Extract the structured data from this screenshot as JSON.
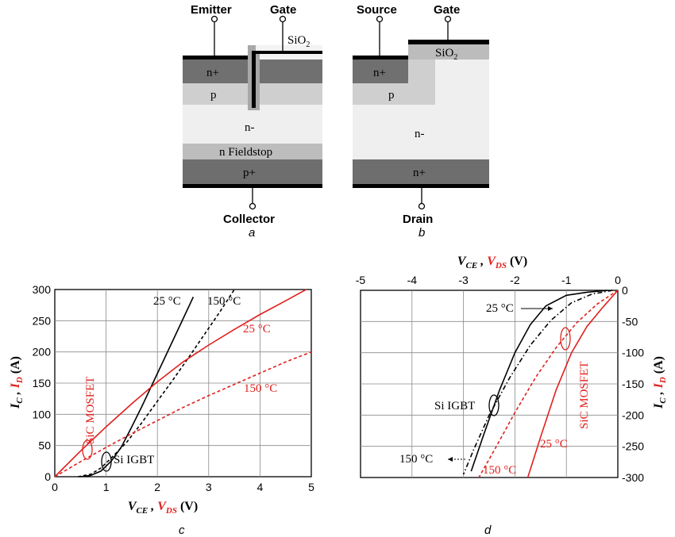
{
  "panel_a": {
    "emitter": "Emitter",
    "gate": "Gate",
    "sio2_main": "SiO",
    "sio2_sub": "2",
    "n_plus": "n+",
    "p": "p",
    "n_minus": "n-",
    "fieldstop": "n Fieldstop",
    "p_plus": "p+",
    "collector": "Collector",
    "caption": "a"
  },
  "panel_b": {
    "source": "Source",
    "gate": "Gate",
    "sio2_main": "SiO",
    "sio2_sub": "2",
    "n_plus": "n+",
    "p": "p",
    "n_minus": "n-",
    "n_plus_bottom": "n+",
    "drain": "Drain",
    "caption": "b"
  },
  "colors": {
    "black": "#000000",
    "red": "#e0201c"
  },
  "panel_c": {
    "caption": "c",
    "ylabel": {
      "main": "I",
      "sub": "C",
      "sep": " , ",
      "main2": "I",
      "sub2": "D",
      "unit": " (A)"
    },
    "xlabel": {
      "main": "V",
      "sub": "CE",
      "sep": " , ",
      "main2": "V",
      "sub2": "DS",
      "unit": " (V)"
    },
    "annotations": {
      "t25_black": "25 °C",
      "t150_black": "150 °C",
      "t25_red": "25 °C",
      "t150_red": "150 °C",
      "sic": "SiC MOSFET",
      "si": "Si IGBT"
    }
  },
  "panel_d": {
    "caption": "d",
    "xlabel": {
      "main": "V",
      "sub": "CE",
      "sep": " , ",
      "main2": "V",
      "sub2": "DS",
      "unit": " (V)"
    },
    "ylabel": {
      "main": "I",
      "sub": "C",
      "sep": " , ",
      "main2": "I",
      "sub2": "D",
      "unit": " (A)"
    },
    "annotations": {
      "t25_black": "25 °C",
      "t150_black": "150 °C",
      "t25_red": "25 °C",
      "t150_red": "150 °C",
      "sic": "SiC MOSFET",
      "si": "Si IGBT"
    }
  },
  "chart_data": [
    {
      "type": "line",
      "panel": "c",
      "xlim": [
        0,
        5
      ],
      "ylim": [
        0,
        300
      ],
      "xticks": [
        0,
        1,
        2,
        3,
        4,
        5
      ],
      "yticks": [
        0,
        50,
        100,
        150,
        200,
        250,
        300
      ],
      "grid": true,
      "series": [
        {
          "name": "Si IGBT 25 °C",
          "color": "#000000",
          "dash": "solid",
          "x": [
            0.5,
            0.7,
            0.9,
            1.1,
            1.3,
            1.5,
            1.7,
            1.9,
            2.1,
            2.3,
            2.5,
            2.7
          ],
          "y": [
            0,
            2,
            9,
            25,
            48,
            80,
            113,
            148,
            183,
            218,
            253,
            288
          ]
        },
        {
          "name": "Si IGBT 150 °C",
          "color": "#000000",
          "dash": "dashed",
          "x": [
            0.45,
            0.7,
            0.9,
            1.1,
            1.4,
            1.7,
            2.0,
            2.3,
            2.6,
            2.9,
            3.2,
            3.5
          ],
          "y": [
            0,
            4,
            14,
            30,
            55,
            87,
            121,
            155,
            190,
            226,
            262,
            300
          ]
        },
        {
          "name": "SiC MOSFET 25 °C",
          "color": "#e0201c",
          "dash": "solid",
          "x": [
            0,
            0.5,
            1,
            1.5,
            2,
            2.5,
            3,
            3.5,
            4,
            4.5,
            4.9
          ],
          "y": [
            0,
            41,
            80,
            117,
            152,
            184,
            211,
            236,
            260,
            282,
            300
          ]
        },
        {
          "name": "SiC MOSFET 150 °C",
          "color": "#e0201c",
          "dash": "dashed",
          "x": [
            0,
            0.5,
            1,
            1.5,
            2,
            2.5,
            3,
            3.5,
            4,
            4.5,
            5
          ],
          "y": [
            0,
            24,
            47,
            69,
            90,
            111,
            130,
            148,
            166,
            184,
            200
          ]
        }
      ]
    },
    {
      "type": "line",
      "panel": "d",
      "xlim": [
        -5,
        0
      ],
      "ylim": [
        -300,
        0
      ],
      "xticks": [
        -5,
        -4,
        -3,
        -2,
        -1,
        0
      ],
      "yticks": [
        0,
        -50,
        -100,
        -150,
        -200,
        -250,
        -300
      ],
      "grid": true,
      "series": [
        {
          "name": "Si IGBT 25 °C",
          "color": "#000000",
          "dash": "solid",
          "x": [
            -0.2,
            -0.6,
            -1.0,
            -1.4,
            -1.7,
            -2.0,
            -2.3,
            -2.6,
            -2.85
          ],
          "y": [
            0,
            -3,
            -8,
            -25,
            -55,
            -100,
            -160,
            -230,
            -290
          ]
        },
        {
          "name": "Si IGBT 150 °C",
          "color": "#000000",
          "dash": "dashdot",
          "x": [
            -0.1,
            -0.5,
            -0.9,
            -1.3,
            -1.7,
            -2.1,
            -2.5,
            -2.8,
            -3.0
          ],
          "y": [
            0,
            -6,
            -20,
            -48,
            -88,
            -140,
            -200,
            -255,
            -295
          ]
        },
        {
          "name": "SiC MOSFET 25 °C",
          "color": "#e0201c",
          "dash": "solid",
          "x": [
            0,
            -0.3,
            -0.6,
            -0.9,
            -1.2,
            -1.5,
            -1.75
          ],
          "y": [
            0,
            -28,
            -58,
            -100,
            -160,
            -235,
            -300
          ]
        },
        {
          "name": "SiC MOSFET 150 °C",
          "color": "#e0201c",
          "dash": "dashed",
          "x": [
            0,
            -0.4,
            -0.8,
            -1.2,
            -1.6,
            -2.0,
            -2.4,
            -2.7
          ],
          "y": [
            0,
            -22,
            -52,
            -92,
            -140,
            -196,
            -256,
            -300
          ]
        }
      ]
    }
  ]
}
